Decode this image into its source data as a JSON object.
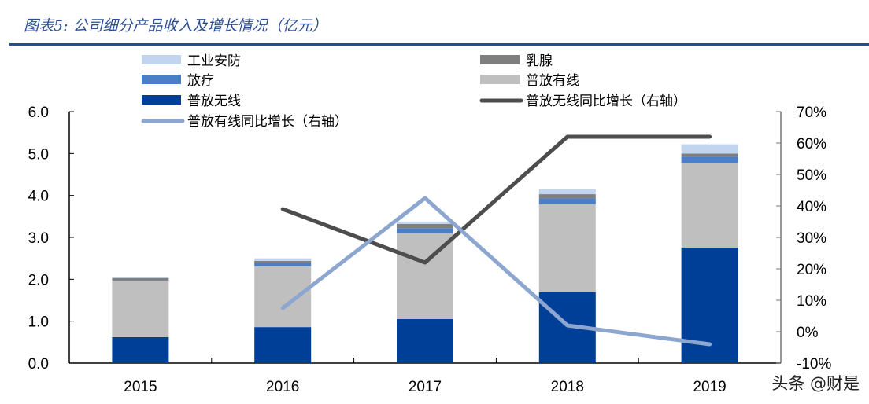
{
  "title": "图表5: 公司细分产品收入及增长情况（亿元）",
  "watermark": "头条 @财是",
  "chart_data": {
    "type": "bar",
    "stacked": true,
    "categories": [
      "2015",
      "2016",
      "2017",
      "2018",
      "2019"
    ],
    "series": [
      {
        "name": "普放无线",
        "kind": "bar",
        "axis": "left",
        "color": "#003f98",
        "values": [
          0.62,
          0.86,
          1.05,
          1.69,
          2.76
        ]
      },
      {
        "name": "普放有线",
        "kind": "bar",
        "axis": "left",
        "color": "#bfbfbf",
        "values": [
          1.35,
          1.45,
          2.05,
          2.1,
          2.01
        ]
      },
      {
        "name": "放疗",
        "kind": "bar",
        "axis": "left",
        "color": "#4a7fc8",
        "values": [
          0.0,
          0.08,
          0.12,
          0.14,
          0.15
        ]
      },
      {
        "name": "乳腺",
        "kind": "bar",
        "axis": "left",
        "color": "#7f7f7f",
        "values": [
          0.06,
          0.05,
          0.1,
          0.1,
          0.08
        ]
      },
      {
        "name": "工业安防",
        "kind": "bar",
        "axis": "left",
        "color": "#c3d5ee",
        "values": [
          0.02,
          0.06,
          0.06,
          0.12,
          0.22
        ]
      },
      {
        "name": "普放无线同比增长（右轴）",
        "kind": "line",
        "axis": "right",
        "color": "#4d4d4d",
        "values": [
          null,
          39,
          22,
          62,
          62
        ]
      },
      {
        "name": "普放有线同比增长（右轴）",
        "kind": "line",
        "axis": "right",
        "color": "#8da6cf",
        "values": [
          null,
          7.5,
          42.5,
          2,
          -4
        ]
      }
    ],
    "y_left": {
      "range": [
        0,
        6
      ],
      "ticks": [
        "0.0",
        "1.0",
        "2.0",
        "3.0",
        "4.0",
        "5.0",
        "6.0"
      ]
    },
    "y_right": {
      "range": [
        -10,
        70
      ],
      "ticks": [
        "-10%",
        "0%",
        "10%",
        "20%",
        "30%",
        "40%",
        "50%",
        "60%",
        "70%"
      ]
    },
    "legend": {
      "position": "top",
      "items": [
        {
          "name": "工业安防",
          "kind": "bar",
          "color": "#c3d5ee"
        },
        {
          "name": "乳腺",
          "kind": "bar",
          "color": "#7f7f7f"
        },
        {
          "name": "放疗",
          "kind": "bar",
          "color": "#4a7fc8"
        },
        {
          "name": "普放有线",
          "kind": "bar",
          "color": "#bfbfbf"
        },
        {
          "name": "普放无线",
          "kind": "bar",
          "color": "#003f98"
        },
        {
          "name": "普放无线同比增长（右轴）",
          "kind": "line",
          "color": "#4d4d4d"
        },
        {
          "name": "普放有线同比增长（右轴）",
          "kind": "line",
          "color": "#8da6cf"
        }
      ]
    },
    "grid": false
  }
}
